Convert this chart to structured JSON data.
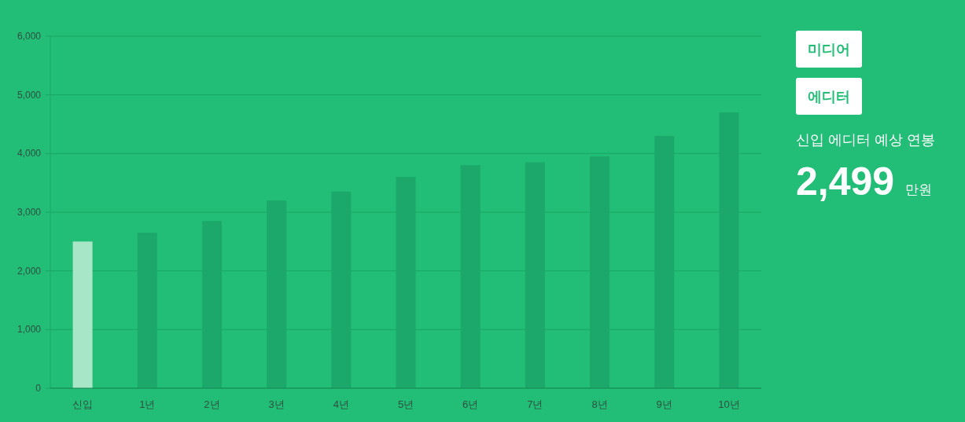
{
  "chart_data": [
    {
      "type": "bar",
      "categories": [
        "신입",
        "1년",
        "2년",
        "3년",
        "4년",
        "5년",
        "6년",
        "7년",
        "8년",
        "9년",
        "10년"
      ],
      "values": [
        2500,
        2650,
        2850,
        3200,
        3350,
        3600,
        3800,
        3850,
        3950,
        4300,
        4700
      ],
      "colors": [
        "#a8e6c8",
        "#1ca86a",
        "#1ca86a",
        "#1ca86a",
        "#1ca86a",
        "#1ca86a",
        "#1ca86a",
        "#1ca86a",
        "#1ca86a",
        "#1ca86a",
        "#1ca86a"
      ],
      "ylim": [
        0,
        6000
      ],
      "yticks": [
        0,
        {
          "value": 1000,
          "label": "1,000"
        },
        {
          "value": 2000,
          "label": "2,000"
        },
        {
          "value": 3000,
          "label": "3,000"
        },
        {
          "value": 4000,
          "label": "4,000"
        },
        {
          "value": 5000,
          "label": "5,000"
        },
        {
          "value": 6000,
          "label": "6,000"
        }
      ],
      "grid": "y"
    },
    {
      "type": "other",
      "annotations": [
        "미디어",
        "에디터",
        "신입 에디터 예상 연봉",
        "2,499",
        "만원"
      ]
    }
  ]
}
